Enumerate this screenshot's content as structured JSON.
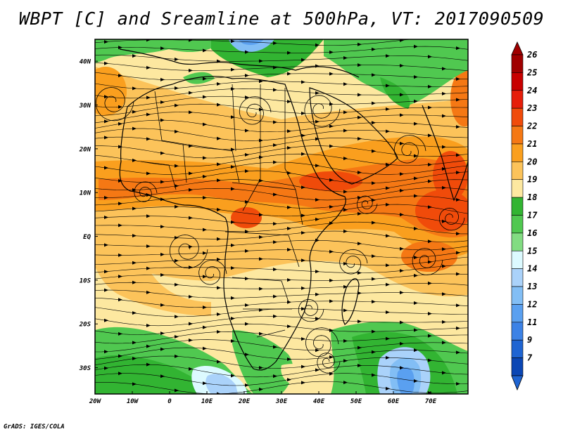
{
  "title": "WBPT [C] and Sreamline at 500hPa, VT: 2017090509",
  "footer": "GrADS: IGES/COLA",
  "map": {
    "lat_labels": [
      {
        "text": "40N",
        "lat": 40
      },
      {
        "text": "30N",
        "lat": 30
      },
      {
        "text": "20N",
        "lat": 20
      },
      {
        "text": "10N",
        "lat": 10
      },
      {
        "text": "EQ",
        "lat": 0
      },
      {
        "text": "10S",
        "lat": -10
      },
      {
        "text": "20S",
        "lat": -20
      },
      {
        "text": "30S",
        "lat": -30
      }
    ],
    "lon_labels": [
      {
        "text": "20W",
        "lon": -20
      },
      {
        "text": "10W",
        "lon": -10
      },
      {
        "text": "0",
        "lon": 0
      },
      {
        "text": "10E",
        "lon": 10
      },
      {
        "text": "20E",
        "lon": 20
      },
      {
        "text": "30E",
        "lon": 30
      },
      {
        "text": "40E",
        "lon": 40
      },
      {
        "text": "50E",
        "lon": 50
      },
      {
        "text": "60E",
        "lon": 60
      },
      {
        "text": "70E",
        "lon": 70
      }
    ],
    "lon_range": [
      -20,
      80
    ],
    "lat_range": [
      -36,
      45
    ]
  },
  "colorbar": {
    "levels": [
      {
        "label": "26",
        "color": "#a00000"
      },
      {
        "label": "25",
        "color": "#c80000"
      },
      {
        "label": "24",
        "color": "#e61e0a"
      },
      {
        "label": "23",
        "color": "#f04b0a"
      },
      {
        "label": "22",
        "color": "#f57814"
      },
      {
        "label": "21",
        "color": "#fa9f1e"
      },
      {
        "label": "20",
        "color": "#fcc35a"
      },
      {
        "label": "19",
        "color": "#fde8a0"
      },
      {
        "label": "18",
        "color": "#32b432"
      },
      {
        "label": "17",
        "color": "#50c850"
      },
      {
        "label": "16",
        "color": "#82dc82"
      },
      {
        "label": "15",
        "color": "#dcfaff"
      },
      {
        "label": "14",
        "color": "#aad2fa"
      },
      {
        "label": "13",
        "color": "#82bef5"
      },
      {
        "label": "12",
        "color": "#5aa0f0"
      },
      {
        "label": "11",
        "color": "#3c82e6"
      },
      {
        "label": "9",
        "color": "#1e64d2"
      },
      {
        "label": "7",
        "color": "#0a46b4"
      }
    ],
    "top_arrow_color": "#a00000",
    "bottom_arrow_color": "#1e64d2"
  }
}
